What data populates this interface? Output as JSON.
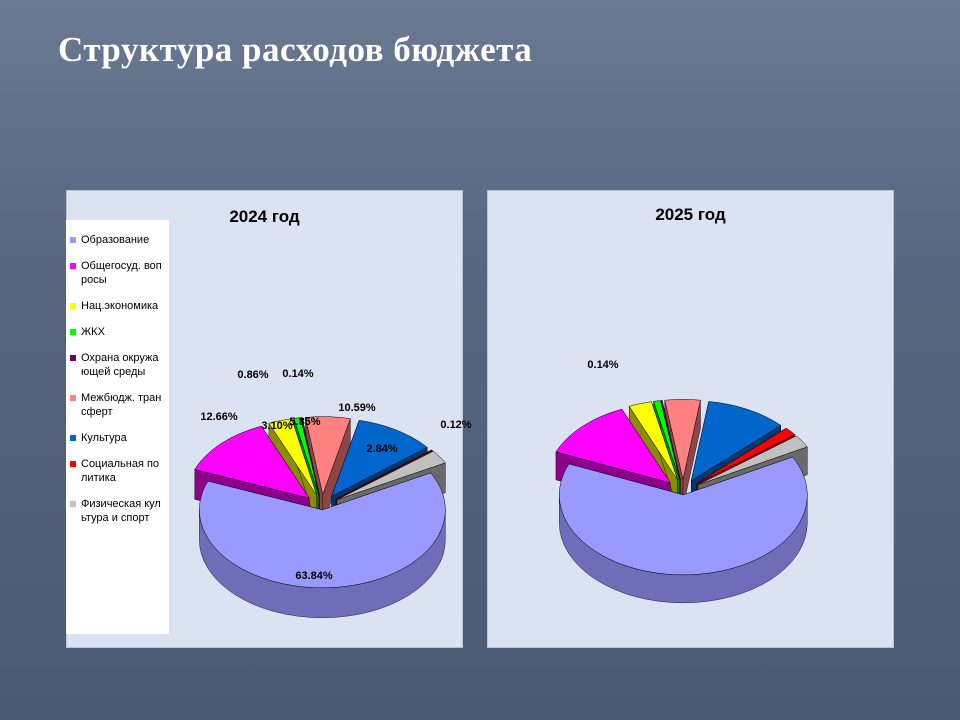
{
  "title": "Структура расходов бюджета",
  "colors": {
    "Образование": "#9999ff",
    "Общегосуд. вопросы": "#ff00ff",
    "Нац.экономика": "#ffff00",
    "ЖКХ": "#00ff00",
    "Охрана окружающей среды": "#660066",
    "Межбюдж. трансферт": "#ff8080",
    "Культура": "#0066cc",
    "Социальная политика": "#ff0000",
    "Физическая культура и спорт": "#c0c0c0"
  },
  "legend": [
    {
      "label": "Образование",
      "color": "#9999ff"
    },
    {
      "label": "Общегосуд. вопросы",
      "color": "#ff00ff"
    },
    {
      "label": "Нац.экономика",
      "color": "#ffff00"
    },
    {
      "label": "ЖКХ",
      "color": "#00ff00"
    },
    {
      "label": "Охрана окружающей среды",
      "color": "#660066"
    },
    {
      "label": "Межбюдж. трансферт",
      "color": "#ff8080"
    },
    {
      "label": "Культура",
      "color": "#0066cc"
    },
    {
      "label": "Социальная политика",
      "color": "#ff0000"
    },
    {
      "label": "Физическая культура и спорт",
      "color": "#c0c0c0"
    }
  ],
  "chart_data": [
    {
      "type": "pie",
      "title": "2024 год",
      "three_d": true,
      "exploded": true,
      "legend_position": "left",
      "categories": [
        "Образование",
        "Общегосуд. вопросы",
        "Нац.экономика",
        "ЖКХ",
        "Охрана окружающей среды",
        "Межбюдж. трансферт",
        "Культура",
        "Социальная политика",
        "Физическая культура и спорт"
      ],
      "values": [
        63.84,
        12.66,
        3.1,
        0.86,
        0.14,
        5.85,
        10.59,
        0.12,
        2.84
      ],
      "data_labels": [
        "63.84%",
        "12.66%",
        "3.10%",
        "0.86%",
        "0.14%",
        "5.85%",
        "10.59%",
        "0.12%",
        "2.84%"
      ]
    },
    {
      "type": "pie",
      "title": "2025 год",
      "three_d": true,
      "exploded": true,
      "categories": [
        "Образование",
        "Общегосуд. вопросы",
        "Нац.экономика",
        "ЖКХ",
        "Охрана окружающей среды",
        "Межбюдж. трансферт",
        "Культура",
        "Социальная политика",
        "Физическая культура и спорт"
      ],
      "values": [
        64.2,
        12.3,
        3.0,
        0.9,
        0.14,
        4.6,
        10.6,
        1.7,
        2.6
      ],
      "data_labels": [
        "",
        "",
        "",
        "",
        "0.14%",
        "",
        "",
        "",
        ""
      ]
    }
  ]
}
